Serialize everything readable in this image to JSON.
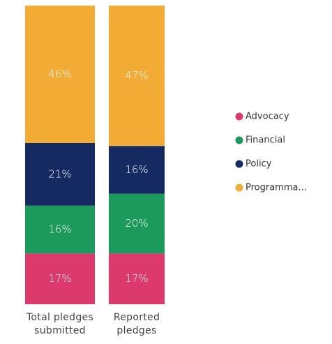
{
  "chart_data": {
    "type": "stacked_bar",
    "categories": [
      "Total pledges submitted",
      "Reported pledges"
    ],
    "series": [
      {
        "name": "Advocacy",
        "color": "#dc3a6c",
        "values": [
          17,
          17
        ],
        "value_labels": [
          "17%",
          "17%"
        ]
      },
      {
        "name": "Financial",
        "color": "#1b9a5c",
        "values": [
          16,
          20
        ],
        "value_labels": [
          "16%",
          "20%"
        ]
      },
      {
        "name": "Policy",
        "color": "#162a62",
        "values": [
          21,
          16
        ],
        "value_labels": [
          "21%",
          "16%"
        ]
      },
      {
        "name": "Programma…",
        "color": "#f2ab34",
        "values": [
          46,
          47
        ],
        "value_labels": [
          "46%",
          "47%"
        ]
      }
    ]
  }
}
